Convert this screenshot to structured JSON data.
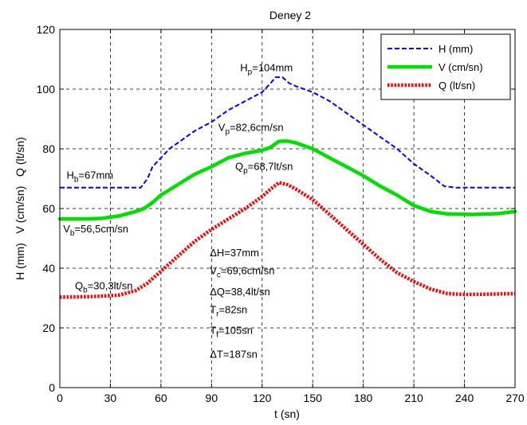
{
  "chart_data": {
    "type": "line",
    "title": "Deney 2",
    "xlabel": "t (sn)",
    "ylabel": "H (mm)   V (cm/sn)   Q (lt/sn)",
    "xlim": [
      0,
      270
    ],
    "ylim": [
      0,
      120
    ],
    "xticks": [
      0,
      30,
      60,
      90,
      120,
      150,
      180,
      210,
      240,
      270
    ],
    "yticks": [
      0,
      20,
      40,
      60,
      80,
      100,
      120
    ],
    "grid": true,
    "legend_position": "top-right",
    "series": [
      {
        "name": "H (mm)",
        "color": "#0000ff",
        "style": "dashed",
        "points": [
          [
            0,
            67
          ],
          [
            30,
            67
          ],
          [
            48,
            67
          ],
          [
            52,
            70
          ],
          [
            55,
            74
          ],
          [
            60,
            77
          ],
          [
            65,
            80
          ],
          [
            70,
            82
          ],
          [
            80,
            86
          ],
          [
            90,
            89
          ],
          [
            100,
            93
          ],
          [
            110,
            96
          ],
          [
            120,
            99
          ],
          [
            125,
            102
          ],
          [
            128,
            104
          ],
          [
            132,
            104
          ],
          [
            136,
            102
          ],
          [
            140,
            101
          ],
          [
            150,
            99
          ],
          [
            160,
            96
          ],
          [
            170,
            92
          ],
          [
            180,
            88
          ],
          [
            190,
            84
          ],
          [
            200,
            80
          ],
          [
            210,
            75
          ],
          [
            220,
            71
          ],
          [
            228,
            67.5
          ],
          [
            235,
            67
          ],
          [
            250,
            67
          ],
          [
            270,
            67
          ]
        ]
      },
      {
        "name": "V (cm/sn)",
        "color": "#00e000",
        "style": "solid",
        "points": [
          [
            0,
            56.5
          ],
          [
            15,
            56.5
          ],
          [
            25,
            56.7
          ],
          [
            35,
            57.5
          ],
          [
            45,
            59
          ],
          [
            50,
            60
          ],
          [
            55,
            62
          ],
          [
            60,
            64.5
          ],
          [
            70,
            68
          ],
          [
            80,
            71.5
          ],
          [
            90,
            74
          ],
          [
            100,
            77
          ],
          [
            110,
            78.5
          ],
          [
            120,
            79.5
          ],
          [
            125,
            80.5
          ],
          [
            130,
            82.5
          ],
          [
            135,
            82.6
          ],
          [
            140,
            82
          ],
          [
            150,
            80
          ],
          [
            160,
            77
          ],
          [
            170,
            74
          ],
          [
            180,
            71
          ],
          [
            190,
            67.5
          ],
          [
            200,
            64.5
          ],
          [
            210,
            61
          ],
          [
            220,
            59
          ],
          [
            230,
            58.2
          ],
          [
            245,
            58
          ],
          [
            260,
            58.3
          ],
          [
            270,
            59
          ]
        ]
      },
      {
        "name": "Q (lt/sn)",
        "color": "#ff0000",
        "style": "dotted",
        "points": [
          [
            0,
            30.3
          ],
          [
            20,
            30.5
          ],
          [
            35,
            31
          ],
          [
            45,
            32.5
          ],
          [
            52,
            35
          ],
          [
            60,
            39
          ],
          [
            70,
            44
          ],
          [
            80,
            49
          ],
          [
            90,
            53
          ],
          [
            100,
            56.5
          ],
          [
            110,
            60
          ],
          [
            120,
            64
          ],
          [
            125,
            66.5
          ],
          [
            130,
            68.7
          ],
          [
            135,
            68
          ],
          [
            140,
            66.5
          ],
          [
            150,
            63
          ],
          [
            160,
            58
          ],
          [
            170,
            53
          ],
          [
            180,
            48
          ],
          [
            190,
            43
          ],
          [
            200,
            38.5
          ],
          [
            210,
            35.5
          ],
          [
            220,
            33
          ],
          [
            230,
            31.5
          ],
          [
            240,
            31.2
          ],
          [
            255,
            31.3
          ],
          [
            270,
            31.5
          ]
        ]
      }
    ],
    "annotations": [
      {
        "text": "H",
        "sub": "p",
        "rest": "=104mm",
        "x": 107,
        "y": 106
      },
      {
        "text": "V",
        "sub": "p",
        "rest": "=82,6cm/sn",
        "x": 94,
        "y": 86
      },
      {
        "text": "Q",
        "sub": "p",
        "rest": "=68,7lt/sn",
        "x": 104,
        "y": 73
      },
      {
        "text": "H",
        "sub": "b",
        "rest": "=67mm",
        "x": 4,
        "y": 70
      },
      {
        "text": "V",
        "sub": "b",
        "rest": "=56,5cm/sn",
        "x": 2,
        "y": 52
      },
      {
        "text": "Q",
        "sub": "b",
        "rest": "=30,3lt/sn",
        "x": 9,
        "y": 33
      },
      {
        "text": "ΔH=37mm",
        "sub": "",
        "rest": "",
        "x": 89,
        "y": 44
      },
      {
        "text": "V",
        "sub": "c",
        "rest": "=69,6cm/sn",
        "x": 89,
        "y": 38
      },
      {
        "text": "ΔQ=38,4lt/sn",
        "sub": "",
        "rest": "",
        "x": 89,
        "y": 31
      },
      {
        "text": "T",
        "sub": "r",
        "rest": "=82sn",
        "x": 89,
        "y": 25
      },
      {
        "text": "T",
        "sub": "f",
        "rest": "=105sn",
        "x": 89,
        "y": 18
      },
      {
        "text": "ΔT=187sn",
        "sub": "",
        "rest": "",
        "x": 89,
        "y": 10
      }
    ]
  }
}
